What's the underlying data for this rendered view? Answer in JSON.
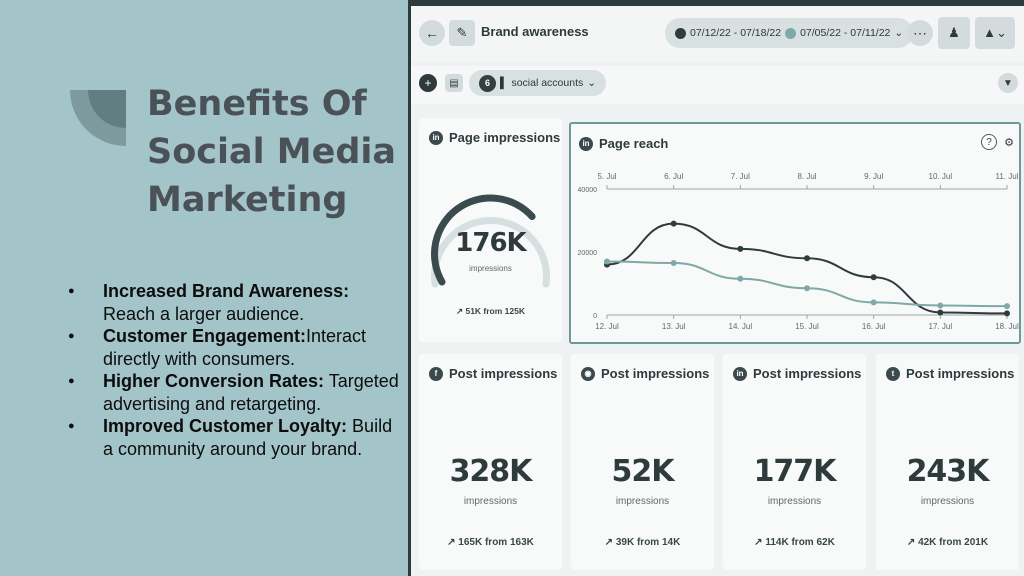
{
  "slide": {
    "title": "Benefits Of Social Media Marketing",
    "bullets": [
      {
        "bold": "Increased Brand Awareness:",
        "text": " Reach a larger audience."
      },
      {
        "bold": "Customer Engagement:",
        "text": "Interact directly with consumers."
      },
      {
        "bold": "Higher Conversion Rates:",
        "text": " Targeted advertising and retargeting."
      },
      {
        "bold": "Improved Customer Loyalty:",
        "text": " Build a community around your brand."
      }
    ]
  },
  "dashboard": {
    "title": "Brand awareness",
    "date_range_1": "07/12/22 - 07/18/22",
    "date_range_2": "07/05/22 - 07/11/22",
    "social_accounts_count": "6",
    "social_accounts_label": "social accounts",
    "page_impressions": {
      "title": "Page impressions",
      "value": "176K",
      "unit": "impressions",
      "trend": "51K from 125K",
      "gauge_fraction": 0.7
    },
    "post_cards": [
      {
        "title": "Post impressions",
        "network": "facebook",
        "value": "328K",
        "unit": "impressions",
        "trend": "165K from 163K"
      },
      {
        "title": "Post impressions",
        "network": "instagram",
        "value": "52K",
        "unit": "impressions",
        "trend": "39K from 14K"
      },
      {
        "title": "Post impressions",
        "network": "linkedin",
        "value": "177K",
        "unit": "impressions",
        "trend": "114K from 62K"
      },
      {
        "title": "Post impressions",
        "network": "twitter",
        "value": "243K",
        "unit": "impressions",
        "trend": "42K from 201K"
      }
    ],
    "colors": {
      "series_current": "#2f3b3d",
      "series_previous": "#7fa9a6",
      "accent_border": "#6d9a96"
    }
  },
  "chart_data": {
    "type": "line",
    "title": "Page reach",
    "x_top": [
      "5. Jul",
      "6. Jul",
      "7. Jul",
      "8. Jul",
      "9. Jul",
      "10. Jul",
      "11. Jul"
    ],
    "x": [
      "12. Jul",
      "13. Jul",
      "14. Jul",
      "15. Jul",
      "16. Jul",
      "17. Jul",
      "18. Jul"
    ],
    "y_ticks": [
      "40000",
      "20000",
      "0"
    ],
    "ylim": [
      0,
      40000
    ],
    "grid": false,
    "series": [
      {
        "values": [
          16000,
          29000,
          21000,
          18000,
          12000,
          800,
          500
        ]
      },
      {
        "values": [
          17000,
          16500,
          11500,
          8500,
          4000,
          3000,
          2800
        ]
      }
    ]
  }
}
